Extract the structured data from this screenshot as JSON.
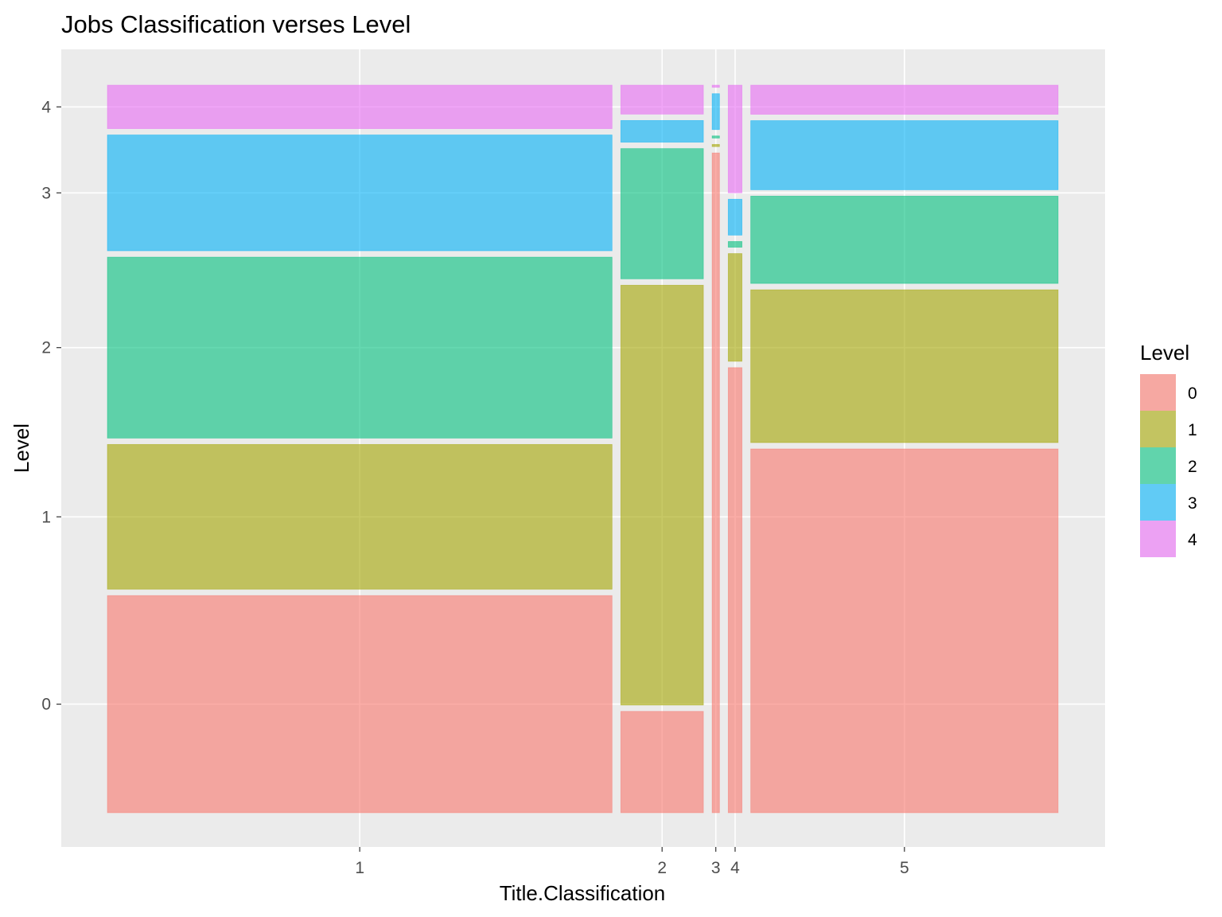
{
  "chart_data": {
    "type": "mosaic",
    "title": "Jobs Classification verses Level",
    "xlabel": "Title.Classification",
    "ylabel": "Level",
    "x_tick_labels": [
      "1",
      "2",
      "3",
      "4",
      "5"
    ],
    "y_tick_labels": [
      "0",
      "1",
      "2",
      "3",
      "4"
    ],
    "grid": true,
    "legend": {
      "title": "Level",
      "position": "right",
      "levels": [
        "0",
        "1",
        "2",
        "3",
        "4"
      ],
      "colors": [
        "#F8766D",
        "#A3A500",
        "#00BF7D",
        "#00B0F6",
        "#E76BF3"
      ]
    },
    "panel_background": "#EBEBEB",
    "fill_opacity": 0.6,
    "categories": [
      "1",
      "2",
      "3",
      "4",
      "5"
    ],
    "column_shares": [
      0.55,
      0.09,
      0.008,
      0.015,
      0.335
    ],
    "proportions": {
      "1": [
        0.3,
        0.2,
        0.25,
        0.16,
        0.06
      ],
      "2": [
        0.14,
        0.58,
        0.18,
        0.03,
        0.04
      ],
      "3": [
        0.92,
        0.003,
        0.003,
        0.05,
        0.003
      ],
      "4": [
        0.62,
        0.15,
        0.008,
        0.05,
        0.15
      ],
      "5": [
        0.5,
        0.21,
        0.12,
        0.095,
        0.04
      ]
    }
  }
}
